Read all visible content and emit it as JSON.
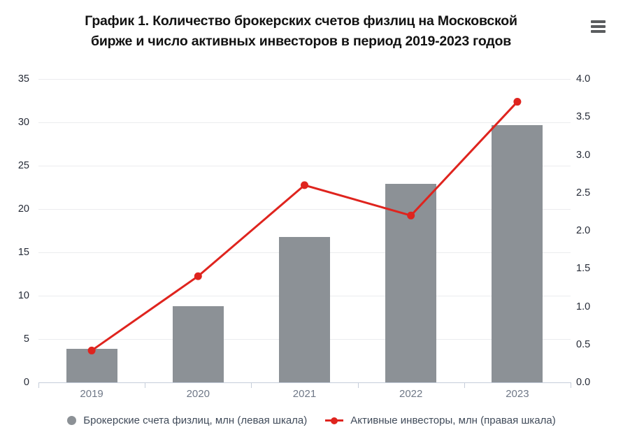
{
  "header": {
    "title_line1": "График 1. Количество брокерских счетов физлиц на Московской",
    "title_line2": "бирже и число активных инвесторов в период 2019-2023 годов",
    "menu_icon": "hamburger-icon"
  },
  "chart_data": {
    "type": "bar+line",
    "title": "График 1. Количество брокерских счетов физлиц на Московской бирже и число активных инвесторов в период 2019-2023 годов",
    "categories": [
      "2019",
      "2020",
      "2021",
      "2022",
      "2023"
    ],
    "series": [
      {
        "name": "Брокерские счета физлиц, млн (левая шкала)",
        "type": "bar",
        "axis": "left",
        "color": "#8c9196",
        "values": [
          3.9,
          8.8,
          16.8,
          22.9,
          29.7
        ]
      },
      {
        "name": "Активные инвесторы, млн (правая шкала)",
        "type": "line",
        "axis": "right",
        "color": "#df241e",
        "values": [
          0.42,
          1.4,
          2.6,
          2.2,
          3.7
        ]
      }
    ],
    "left_axis": {
      "min": 0,
      "max": 35,
      "step": 5,
      "ticks": [
        0,
        5,
        10,
        15,
        20,
        25,
        30,
        35
      ]
    },
    "right_axis": {
      "min": 0,
      "max": 4,
      "step": 0.5,
      "ticks": [
        "0.0",
        "0.5",
        "1.0",
        "1.5",
        "2.0",
        "2.5",
        "3.0",
        "3.5",
        "4.0"
      ]
    },
    "grid": true,
    "legend_position": "bottom",
    "colors": {
      "bar": "#8c9196",
      "line": "#df241e",
      "grid": "#ebecee",
      "axis": "#c6cdda",
      "tick_label": "#262b37",
      "category_label": "#6f7887",
      "legend_text": "#404b5a",
      "title_text": "#121212"
    }
  }
}
